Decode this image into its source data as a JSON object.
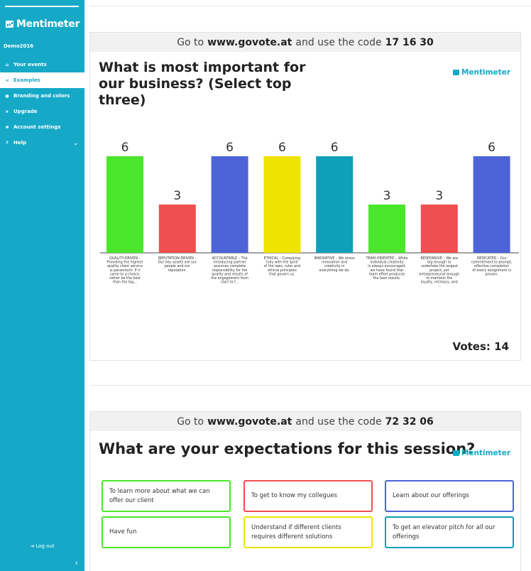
{
  "brand": "Mentimeter",
  "user": "Demo2016",
  "nav": [
    {
      "label": "Your events",
      "icon": "home-icon"
    },
    {
      "label": "Examples",
      "icon": "share-icon"
    },
    {
      "label": "Branding and colors",
      "icon": "drop-icon"
    },
    {
      "label": "Upgrade",
      "icon": "star-icon"
    },
    {
      "label": "Account settings",
      "icon": "gear-icon"
    },
    {
      "label": "Help",
      "icon": "question-icon"
    }
  ],
  "logout": "Log out",
  "slides": [
    {
      "banner_prefix": "Go to",
      "banner_url": "www.govote.at",
      "banner_middle": "and use the code",
      "banner_code": "17 16 30",
      "question": "What is most important for our business? (Select top three)",
      "votes_label": "Votes: 14"
    },
    {
      "banner_prefix": "Go to",
      "banner_url": "www.govote.at",
      "banner_middle": "and use the code",
      "banner_code": "72 32 06",
      "question": "What are your expectations for this session?",
      "options": [
        "To learn more about what we can offer our client",
        "To get to know my collegues",
        "Learn about our offerings",
        "Have fun",
        "Understand if different clients requires different solutions",
        "To get an elevator pitch for all our offerings"
      ],
      "option_colors": [
        "#4ae62c",
        "#ef4f51",
        "#4d63d8",
        "#4ae62c",
        "#efe400",
        "#0f9fb8"
      ]
    }
  ],
  "chart_data": {
    "type": "bar",
    "categories": [
      "QUALITY-DRIVEN – Providing the highest quality client service is paramount. If it came to a choice, rather be the best than the big...",
      "REPUTATION-DRIVEN – Our key assets are our people and our reputation.",
      "ACCOUNTABLE – The introducing partner assumes complete responsibility for the quality and results of the engagement from start to f...",
      "ETHICAL – Complying fully with the spirit of the laws, rules and ethical principles that govern us.",
      "INNOVATIVE – We stress innovation and creativity in everything we do.",
      "TEAM-ORIENTED – While individual creativity is always encouraged, we have found that team effort produces the best results.",
      "RESPONSIVE – We are big enough to undertake the largest project, yet entrepreneurial enough to maintain the loyalty, intimacy, and ...",
      "DEDICATED – Our commitment to prompt, effective completion of every assignment is proven."
    ],
    "values": [
      6,
      3,
      6,
      6,
      6,
      3,
      3,
      6
    ],
    "colors": [
      "#4ae62c",
      "#ef4f51",
      "#4d63d8",
      "#efe400",
      "#0f9fb8",
      "#4ae62c",
      "#ef4f51",
      "#4d63d8"
    ],
    "ylim": [
      0,
      6
    ],
    "grid": false,
    "title": "What is most important for our business? (Select top three)"
  }
}
